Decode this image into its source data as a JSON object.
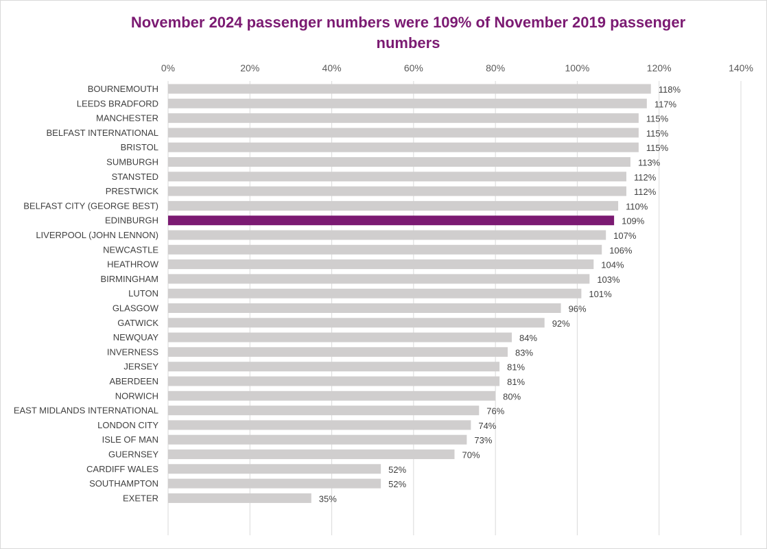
{
  "chart_data": {
    "type": "bar",
    "orientation": "horizontal",
    "title": "November 2024 passenger numbers were 109% of November 2019 passenger numbers",
    "xlabel": "",
    "ylabel": "",
    "xlim": [
      0,
      140
    ],
    "tick_values": [
      0,
      20,
      40,
      60,
      80,
      100,
      120,
      140
    ],
    "tick_labels": [
      "0%",
      "20%",
      "40%",
      "60%",
      "80%",
      "100%",
      "120%",
      "140%"
    ],
    "axis_position": "top",
    "grid": true,
    "legend": "none",
    "colors": {
      "bar": "#d0cece",
      "highlight": "#7b1a72",
      "title": "#7b1a72",
      "grid": "#d9d9d9"
    },
    "highlight_category": "EDINBURGH",
    "categories": [
      "BOURNEMOUTH",
      "LEEDS BRADFORD",
      "MANCHESTER",
      "BELFAST INTERNATIONAL",
      "BRISTOL",
      "SUMBURGH",
      "STANSTED",
      "PRESTWICK",
      "BELFAST CITY (GEORGE BEST)",
      "EDINBURGH",
      "LIVERPOOL (JOHN LENNON)",
      "NEWCASTLE",
      "HEATHROW",
      "BIRMINGHAM",
      "LUTON",
      "GLASGOW",
      "GATWICK",
      "NEWQUAY",
      "INVERNESS",
      "JERSEY",
      "ABERDEEN",
      "NORWICH",
      "EAST MIDLANDS INTERNATIONAL",
      "LONDON CITY",
      "ISLE OF MAN",
      "GUERNSEY",
      "CARDIFF WALES",
      "SOUTHAMPTON",
      "EXETER"
    ],
    "values": [
      118,
      117,
      115,
      115,
      115,
      113,
      112,
      112,
      110,
      109,
      107,
      106,
      104,
      103,
      101,
      96,
      92,
      84,
      83,
      81,
      81,
      80,
      76,
      74,
      73,
      70,
      52,
      52,
      35
    ],
    "value_labels": [
      "118%",
      "117%",
      "115%",
      "115%",
      "115%",
      "113%",
      "112%",
      "112%",
      "110%",
      "109%",
      "107%",
      "106%",
      "104%",
      "103%",
      "101%",
      "96%",
      "92%",
      "84%",
      "83%",
      "81%",
      "81%",
      "80%",
      "76%",
      "74%",
      "73%",
      "70%",
      "52%",
      "52%",
      "35%"
    ]
  }
}
